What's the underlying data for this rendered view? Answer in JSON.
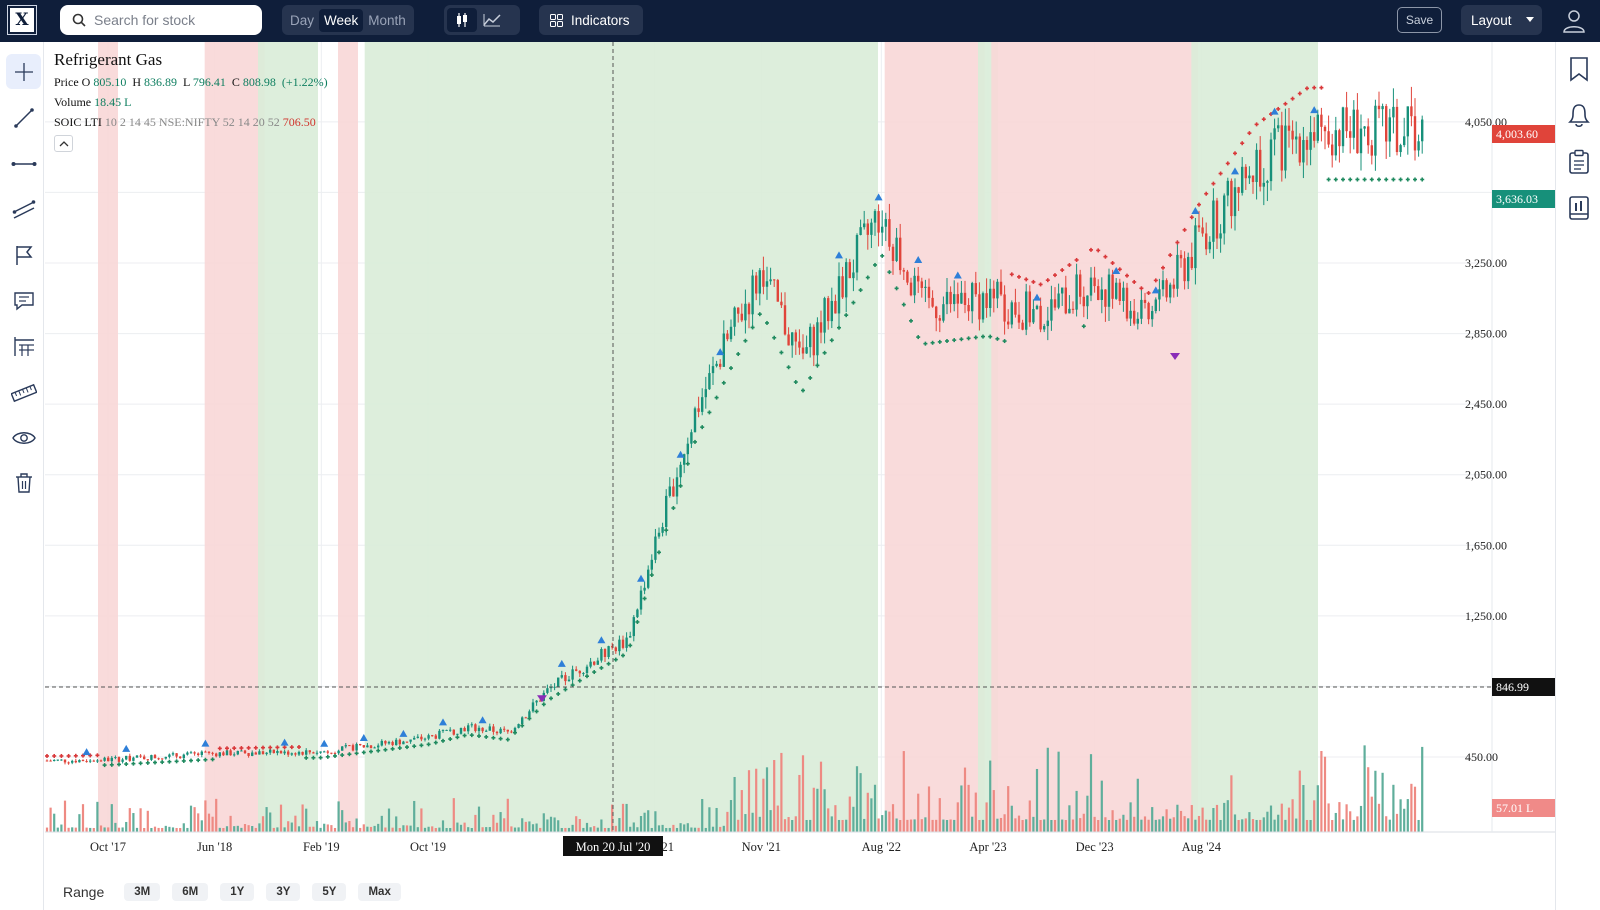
{
  "app": {
    "logo_text": "X"
  },
  "search": {
    "placeholder": "Search for stock",
    "icon": "search-icon"
  },
  "timeframe": {
    "options": [
      "Day",
      "Week",
      "Month"
    ],
    "selected": "Week"
  },
  "chart_style": {
    "options": [
      "candlestick-icon",
      "line-chart-icon"
    ],
    "selected": "candlestick-icon"
  },
  "toolbar": {
    "indicators_label": "Indicators",
    "save_label": "Save",
    "layout_label": "Layout"
  },
  "left_tools": [
    "crosshair-icon",
    "trend-line-icon",
    "horizontal-line-icon",
    "parallel-channel-icon",
    "flag-icon",
    "comment-icon",
    "fib-icon",
    "ruler-icon",
    "eye-icon",
    "trash-icon"
  ],
  "right_tools": [
    "bookmark-icon",
    "bell-icon",
    "clipboard-icon",
    "report-icon"
  ],
  "legend": {
    "title": "Refrigerant Gas",
    "price_label": "Price",
    "o_label": "O",
    "open": "805.10",
    "h_label": "H",
    "high": "836.89",
    "l_label": "L",
    "low": "796.41",
    "c_label": "C",
    "close": "808.98",
    "change": "(+1.22%)",
    "volume_label": "Volume",
    "volume": "18.45 L",
    "indicator_name": "SOIC LTI",
    "indicator_params": "10 2 14 45 NSE:NIFTY 52 14 20 52",
    "indicator_value": "706.50"
  },
  "price_labels": {
    "last_red": "4,003.60",
    "last_green": "3,636.03",
    "crosshair": "846.99",
    "volume": "57.01 L"
  },
  "colors": {
    "up": "#17907a",
    "down": "#e0443a",
    "bull_fill": "#d9ecd8",
    "bear_fill": "#f8d7d7",
    "arrow_up": "#2e7fd8",
    "arrow_down": "#8a2db8",
    "header": "#0f1e3a"
  },
  "range": {
    "label": "Range",
    "options": [
      "3M",
      "6M",
      "1Y",
      "3Y",
      "5Y",
      "Max"
    ]
  },
  "chart_data": {
    "type": "candlestick",
    "title": "Refrigerant Gas",
    "y_axis_ticks": [
      "4,050.00",
      "3,250.00",
      "2,850.00",
      "2,450.00",
      "2,050.00",
      "1,650.00",
      "1,250.00",
      "450.00"
    ],
    "ylim": [
      80,
      4150
    ],
    "x_tick_labels": [
      "Oct '17",
      "Jun '18",
      "Feb '19",
      "Oct '19",
      "Mar '21",
      "Nov '21",
      "Aug '22",
      "Apr '23",
      "Dec '23",
      "Aug '24"
    ],
    "crosshair_date": "Mon 20 Jul '20",
    "crosshair_price": "846.99",
    "trend_regimes": [
      {
        "from": "Oct '17",
        "to": "Oct '17",
        "state": "bear"
      },
      {
        "from": "Jun '18",
        "to": "Sep '18",
        "state": "bear"
      },
      {
        "from": "Oct '18",
        "to": "Jan '19",
        "state": "bull"
      },
      {
        "from": "Apr '19",
        "to": "Apr '19",
        "state": "bear"
      },
      {
        "from": "Jun '19",
        "to": "Jul '22",
        "state": "bull"
      },
      {
        "from": "Sep '22",
        "to": "Mar '23",
        "state": "bear"
      },
      {
        "from": "Apr '23",
        "to": "Apr '23",
        "state": "bull"
      },
      {
        "from": "May '23",
        "to": "Jul '24",
        "state": "bear"
      },
      {
        "from": "Aug '24",
        "to": "Apr '25",
        "state": "bull"
      }
    ],
    "price_path": [
      [
        "Jul '17",
        430
      ],
      [
        "Oct '17",
        435
      ],
      [
        "Jun '18",
        470
      ],
      [
        "Feb '19",
        480
      ],
      [
        "Oct '19",
        560
      ],
      [
        "Jan '20",
        620
      ],
      [
        "Apr '20",
        590
      ],
      [
        "Jul '20",
        830
      ],
      [
        "Oct '20",
        980
      ],
      [
        "Jan '21",
        1120
      ],
      [
        "Mar '21",
        1650
      ],
      [
        "Jun '21",
        2400
      ],
      [
        "Sep '21",
        2900
      ],
      [
        "Nov '21",
        3200
      ],
      [
        "Feb '22",
        2700
      ],
      [
        "Aug '22",
        3550
      ],
      [
        "Nov '22",
        3000
      ],
      [
        "Apr '23",
        3050
      ],
      [
        "Aug '23",
        2950
      ],
      [
        "Dec '23",
        3150
      ],
      [
        "Apr '24",
        2900
      ],
      [
        "Aug '24",
        3400
      ],
      [
        "Dec '24",
        3800
      ],
      [
        "Apr '25",
        4003.6
      ]
    ],
    "series": [
      {
        "name": "Volume",
        "last_value": "57.01 L"
      }
    ]
  }
}
